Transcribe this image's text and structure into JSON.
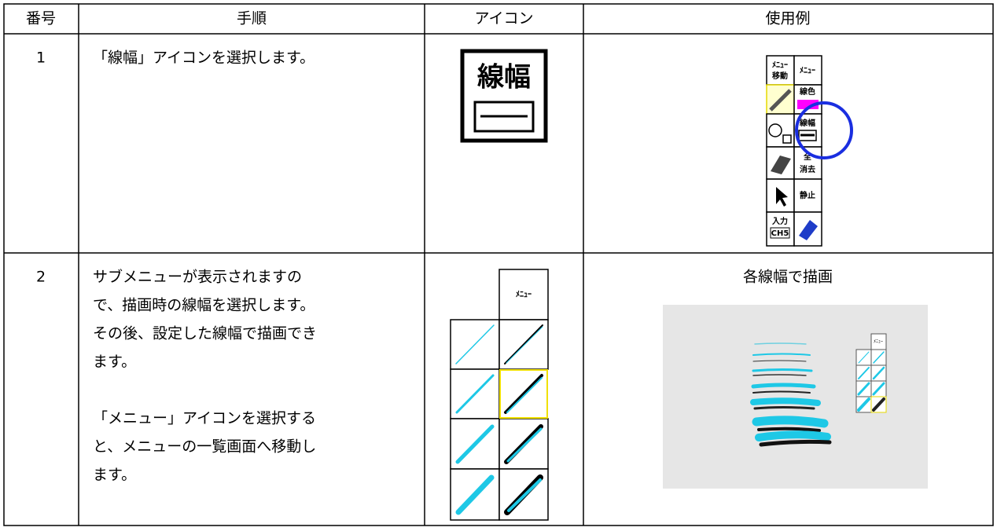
{
  "table": {
    "headers": [
      "番号",
      "手順",
      "アイコン",
      "使用例"
    ],
    "rows": [
      {
        "number": "1",
        "steps": [
          [
            "「線幅」アイコンを選択します。"
          ]
        ],
        "icon": {
          "label": "線幅"
        },
        "example": {
          "labels": [
            "ﾒﾆｭｰ",
            "移動",
            "ﾒﾆｭｰ",
            "線色",
            "線幅",
            "全",
            "消去",
            "静止",
            "入力",
            "CH5"
          ]
        }
      },
      {
        "number": "2",
        "steps": [
          [
            "サブメニューが表示されますの",
            "で、描画時の線幅を選択します。",
            "その後、設定した線幅で描画でき",
            "ます。"
          ],
          [
            "「メニュー」アイコンを選択する",
            "と、メニューの一覧画面へ移動し",
            "ます。"
          ]
        ],
        "icon": {
          "label": "ﾒﾆｭｰ"
        },
        "example": {
          "caption": "各線幅で描画",
          "label": "ﾒﾆｭｰ"
        }
      }
    ]
  }
}
